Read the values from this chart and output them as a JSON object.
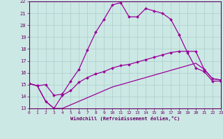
{
  "xlabel": "Windchill (Refroidissement éolien,°C)",
  "background_color": "#cce8e4",
  "grid_color": "#aacccc",
  "line_color": "#990099",
  "spine_color": "#660066",
  "tick_color": "#660066",
  "label_color": "#660066",
  "xlim": [
    0,
    23
  ],
  "ylim": [
    13,
    22
  ],
  "yticks": [
    13,
    14,
    15,
    16,
    17,
    18,
    19,
    20,
    21,
    22
  ],
  "xticks": [
    0,
    1,
    2,
    3,
    4,
    5,
    6,
    7,
    8,
    9,
    10,
    11,
    12,
    13,
    14,
    15,
    16,
    17,
    18,
    19,
    20,
    21,
    22,
    23
  ],
  "line1_x": [
    0,
    1,
    2,
    3,
    4,
    5,
    6,
    7,
    8,
    9,
    10,
    11,
    12,
    13,
    14,
    15,
    16,
    17,
    18,
    19,
    20,
    21,
    22,
    23
  ],
  "line1_y": [
    15.1,
    14.9,
    15.0,
    14.1,
    14.2,
    15.3,
    16.3,
    17.9,
    19.4,
    20.5,
    21.7,
    21.9,
    20.7,
    20.7,
    21.4,
    21.2,
    21.0,
    20.5,
    19.2,
    17.7,
    16.4,
    16.1,
    15.3,
    15.3
  ],
  "line2_x": [
    0,
    1,
    2,
    3,
    4,
    5,
    6,
    7,
    8,
    9,
    10,
    11,
    12,
    13,
    14,
    15,
    16,
    17,
    18,
    19,
    20,
    21,
    22,
    23
  ],
  "line2_y": [
    15.1,
    14.9,
    13.6,
    13.0,
    14.1,
    14.5,
    15.2,
    15.6,
    15.9,
    16.1,
    16.4,
    16.6,
    16.7,
    16.9,
    17.1,
    17.3,
    17.5,
    17.7,
    17.8,
    17.8,
    17.8,
    16.3,
    15.5,
    15.4
  ],
  "line3_x": [
    0,
    1,
    2,
    3,
    4,
    5,
    6,
    7,
    8,
    9,
    10,
    11,
    12,
    13,
    14,
    15,
    16,
    17,
    18,
    19,
    20,
    21,
    22,
    23
  ],
  "line3_y": [
    15.1,
    14.9,
    13.6,
    13.0,
    13.0,
    13.3,
    13.6,
    13.9,
    14.2,
    14.5,
    14.8,
    15.0,
    15.2,
    15.4,
    15.6,
    15.8,
    16.0,
    16.2,
    16.4,
    16.6,
    16.8,
    16.3,
    15.5,
    15.4
  ]
}
